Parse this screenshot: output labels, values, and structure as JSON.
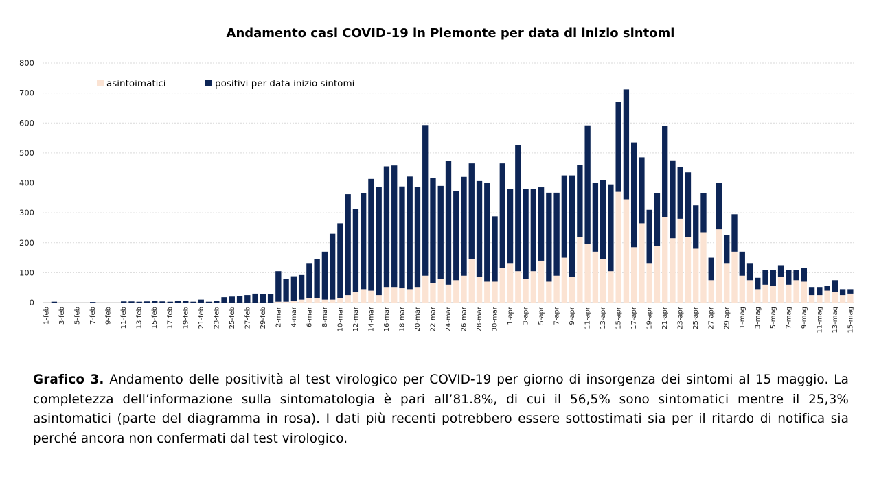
{
  "colors": {
    "asymptomatic": "#fbe3d3",
    "symptomatic": "#0d2556",
    "grid": "#d9d9d9",
    "axis": "#bfbfbf"
  },
  "chart_data": {
    "type": "bar",
    "stacked": true,
    "title_prefix": "Andamento casi COVID-19 in Piemonte per ",
    "title_underlined": "data di inizio sintomi",
    "ylim": [
      0,
      800
    ],
    "yticks": [
      0,
      100,
      200,
      300,
      400,
      500,
      600,
      700,
      800
    ],
    "categories": [
      "1-feb",
      "2-feb",
      "3-feb",
      "4-feb",
      "5-feb",
      "6-feb",
      "7-feb",
      "8-feb",
      "9-feb",
      "10-feb",
      "11-feb",
      "12-feb",
      "13-feb",
      "14-feb",
      "15-feb",
      "16-feb",
      "17-feb",
      "18-feb",
      "19-feb",
      "20-feb",
      "21-feb",
      "22-feb",
      "23-feb",
      "24-feb",
      "25-feb",
      "26-feb",
      "27-feb",
      "28-feb",
      "29-feb",
      "1-mar",
      "2-mar",
      "3-mar",
      "4-mar",
      "5-mar",
      "6-mar",
      "7-mar",
      "8-mar",
      "9-mar",
      "10-mar",
      "11-mar",
      "12-mar",
      "13-mar",
      "14-mar",
      "15-mar",
      "16-mar",
      "17-mar",
      "18-mar",
      "19-mar",
      "20-mar",
      "21-mar",
      "22-mar",
      "23-mar",
      "24-mar",
      "25-mar",
      "26-mar",
      "27-mar",
      "28-mar",
      "29-mar",
      "30-mar",
      "31-mar",
      "1-apr",
      "2-apr",
      "3-apr",
      "4-apr",
      "5-apr",
      "6-apr",
      "7-apr",
      "8-apr",
      "9-apr",
      "10-apr",
      "11-apr",
      "12-apr",
      "13-apr",
      "14-apr",
      "15-apr",
      "16-apr",
      "17-apr",
      "18-apr",
      "19-apr",
      "20-apr",
      "21-apr",
      "22-apr",
      "23-apr",
      "24-apr",
      "25-apr",
      "26-apr",
      "27-apr",
      "28-apr",
      "29-apr",
      "30-apr",
      "1-mag",
      "2-mag",
      "3-mag",
      "4-mag",
      "5-mag",
      "6-mag",
      "7-mag",
      "8-mag",
      "9-mag",
      "10-mag",
      "11-mag",
      "12-mag",
      "13-mag",
      "14-mag",
      "15-mag"
    ],
    "xtick_labels": [
      "1-feb",
      "3-feb",
      "5-feb",
      "7-feb",
      "9-feb",
      "11-feb",
      "13-feb",
      "15-feb",
      "17-feb",
      "19-feb",
      "21-feb",
      "23-feb",
      "25-feb",
      "27-feb",
      "29-feb",
      "2-mar",
      "4-mar",
      "6-mar",
      "8-mar",
      "10-mar",
      "12-mar",
      "14-mar",
      "16-mar",
      "18-mar",
      "20-mar",
      "22-mar",
      "24-mar",
      "26-mar",
      "28-mar",
      "30-mar",
      "1-apr",
      "3-apr",
      "5-apr",
      "7-apr",
      "9-apr",
      "11-apr",
      "13-apr",
      "15-apr",
      "17-apr",
      "19-apr",
      "21-apr",
      "23-apr",
      "25-apr",
      "27-apr",
      "29-apr",
      "1-mag",
      "3-mag",
      "5-mag",
      "7-mag",
      "9-mag",
      "11-mag",
      "13-mag",
      "15-mag"
    ],
    "series": [
      {
        "name": "asintoimatici",
        "values": [
          0,
          0,
          0,
          0,
          0,
          0,
          0,
          0,
          0,
          0,
          0,
          0,
          0,
          0,
          0,
          0,
          0,
          0,
          0,
          0,
          0,
          0,
          0,
          0,
          0,
          0,
          0,
          0,
          0,
          0,
          3,
          3,
          5,
          10,
          15,
          15,
          10,
          10,
          15,
          25,
          35,
          45,
          40,
          25,
          50,
          50,
          48,
          45,
          50,
          90,
          65,
          80,
          60,
          75,
          90,
          145,
          85,
          70,
          70,
          115,
          130,
          105,
          80,
          105,
          140,
          70,
          90,
          150,
          85,
          220,
          195,
          170,
          145,
          105,
          370,
          345,
          185,
          265,
          130,
          190,
          285,
          215,
          280,
          220,
          180,
          235,
          75,
          245,
          130,
          170,
          90,
          75,
          45,
          60,
          55,
          85,
          60,
          75,
          70,
          25,
          25,
          40,
          35,
          25,
          30
        ]
      },
      {
        "name": "positivi per data inizio sintomi",
        "values": [
          0,
          3,
          0,
          0,
          0,
          0,
          2,
          0,
          0,
          0,
          4,
          4,
          3,
          4,
          6,
          4,
          3,
          6,
          5,
          3,
          10,
          3,
          5,
          18,
          20,
          22,
          25,
          30,
          28,
          28,
          102,
          77,
          83,
          82,
          115,
          130,
          160,
          220,
          250,
          337,
          277,
          320,
          373,
          362,
          405,
          408,
          340,
          376,
          337,
          503,
          352,
          310,
          413,
          297,
          330,
          320,
          321,
          330,
          218,
          350,
          250,
          420,
          300,
          275,
          245,
          297,
          277,
          275,
          340,
          240,
          397,
          230,
          265,
          290,
          300,
          367,
          350,
          220,
          180,
          175,
          305,
          260,
          173,
          215,
          145,
          130,
          75,
          155,
          95,
          125,
          80,
          55,
          38,
          50,
          55,
          40,
          50,
          35,
          45,
          25,
          25,
          15,
          40,
          20,
          15
        ]
      }
    ]
  },
  "caption": {
    "label": "Grafico 3.",
    "text": " Andamento delle positività al test virologico per COVID-19 per giorno di insorgenza dei sintomi al 15 maggio. La completezza dell’informazione sulla sintomatologia è pari all’81.8%, di cui il 56,5% sono sintomatici mentre il 25,3% asintomatici (parte del diagramma in rosa). I dati più recenti potrebbero essere sottostimati sia per il ritardo di notifica sia perché ancora non confermati dal test virologico."
  }
}
